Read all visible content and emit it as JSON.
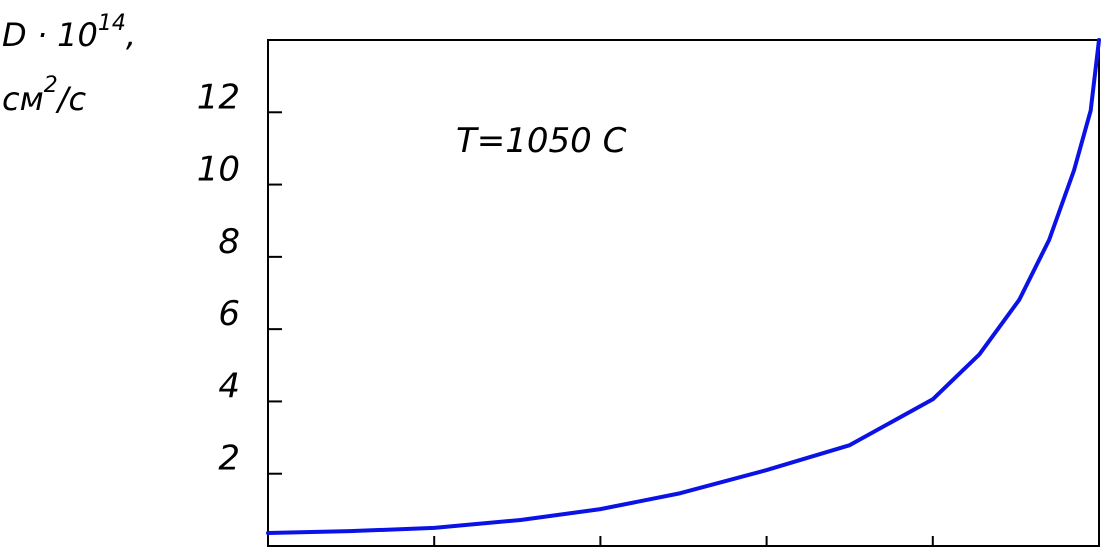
{
  "chart_data": {
    "type": "line",
    "ylabel_parts": [
      "D · 10",
      "14",
      ",",
      "см",
      "2",
      "/с"
    ],
    "annotation": "T=1050 C",
    "x": [
      0,
      0.49,
      1,
      1.52,
      2,
      2.48,
      3,
      3.5,
      4,
      4.28,
      4.52,
      4.7,
      4.85,
      4.95,
      5
    ],
    "series": [
      {
        "color": "#0a12e6",
        "values": [
          0.36,
          0.41,
          0.5,
          0.72,
          1.02,
          1.46,
          2.1,
          2.79,
          4.06,
          5.3,
          6.81,
          8.47,
          10.4,
          12.05,
          14.0
        ]
      }
    ],
    "xlim": [
      0,
      5
    ],
    "xticks": [
      1,
      2,
      3,
      4
    ],
    "ylim": [
      0,
      14
    ],
    "yticks": [
      2,
      4,
      6,
      8,
      10,
      12
    ]
  }
}
